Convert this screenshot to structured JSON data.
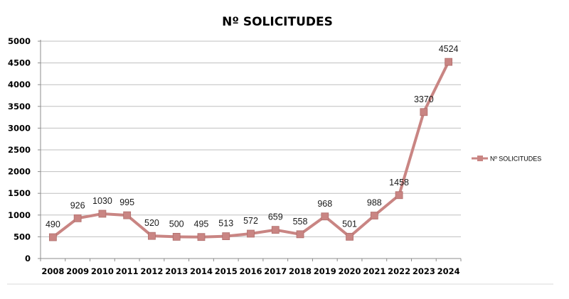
{
  "chart_data": {
    "type": "line",
    "title": "Nº SOLICITUDES",
    "xlabel": "",
    "ylabel": "",
    "ylim": [
      0,
      5000
    ],
    "yticks": [
      0,
      500,
      1000,
      1500,
      2000,
      2500,
      3000,
      3500,
      4000,
      4500,
      5000
    ],
    "categories": [
      "2008",
      "2009",
      "2010",
      "2011",
      "2012",
      "2013",
      "2014",
      "2015",
      "2016",
      "2017",
      "2018",
      "2019",
      "2020",
      "2021",
      "2022",
      "2023",
      "2024"
    ],
    "series": [
      {
        "name": "Nº SOLICITUDES",
        "color": "#c98583",
        "values": [
          490,
          926,
          1030,
          995,
          520,
          500,
          495,
          513,
          572,
          659,
          558,
          968,
          501,
          988,
          1458,
          3370,
          4524
        ]
      }
    ],
    "grid": true,
    "legend_position": "right"
  }
}
